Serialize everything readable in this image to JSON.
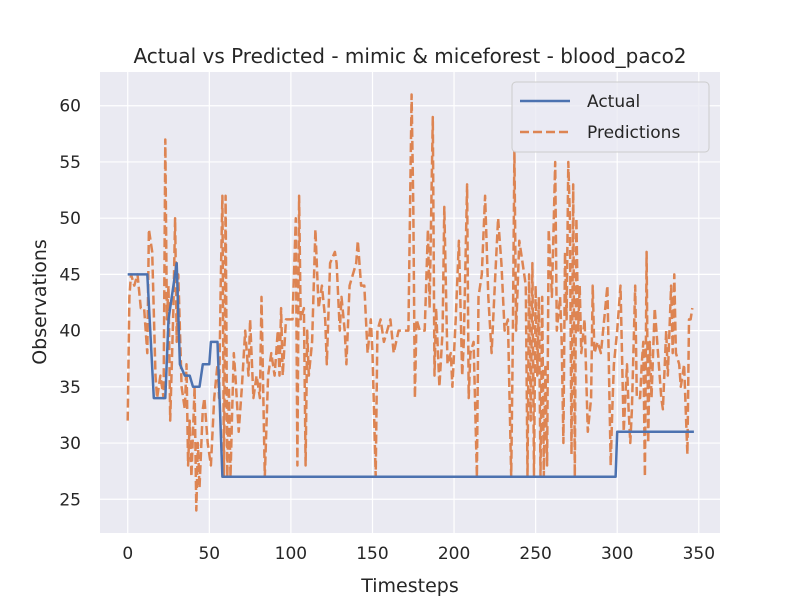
{
  "chart_data": {
    "type": "line",
    "title": "Actual vs Predicted - mimic & miceforest - blood_paco2",
    "xlabel": "Timesteps",
    "ylabel": "Observations",
    "xlim": [
      -17,
      363
    ],
    "ylim": [
      22,
      63
    ],
    "xticks": [
      0,
      50,
      100,
      150,
      200,
      250,
      300,
      350
    ],
    "yticks": [
      25,
      30,
      35,
      40,
      45,
      50,
      55,
      60
    ],
    "grid": true,
    "legend_position": "top-right",
    "series": [
      {
        "name": "Actual",
        "color": "#4c72b0",
        "style": "solid",
        "points": [
          [
            0,
            45
          ],
          [
            12,
            45
          ],
          [
            16,
            34
          ],
          [
            21,
            34
          ],
          [
            23,
            34
          ],
          [
            25,
            41
          ],
          [
            30,
            46
          ],
          [
            32,
            37
          ],
          [
            35,
            36
          ],
          [
            38,
            36
          ],
          [
            40,
            35
          ],
          [
            44,
            35
          ],
          [
            46,
            37
          ],
          [
            50,
            37
          ],
          [
            51,
            39
          ],
          [
            55,
            39
          ],
          [
            58,
            27
          ],
          [
            62,
            27
          ],
          [
            100,
            27
          ],
          [
            200,
            27
          ],
          [
            295,
            27
          ],
          [
            299,
            27
          ],
          [
            300,
            31
          ],
          [
            310,
            31
          ],
          [
            330,
            31
          ],
          [
            347,
            31
          ]
        ]
      },
      {
        "name": "Predictions",
        "color": "#dd8452",
        "style": "dashed",
        "points": [
          [
            0,
            32
          ],
          [
            1,
            43
          ],
          [
            2,
            45
          ],
          [
            4,
            44
          ],
          [
            6,
            45
          ],
          [
            8,
            42
          ],
          [
            10,
            42
          ],
          [
            12,
            38
          ],
          [
            13,
            49
          ],
          [
            15,
            47
          ],
          [
            17,
            36
          ],
          [
            18,
            34
          ],
          [
            20,
            36
          ],
          [
            22,
            34
          ],
          [
            23,
            57
          ],
          [
            24,
            41
          ],
          [
            25,
            44
          ],
          [
            26,
            32
          ],
          [
            28,
            42
          ],
          [
            29,
            50
          ],
          [
            30,
            39
          ],
          [
            31,
            45
          ],
          [
            33,
            35
          ],
          [
            35,
            33
          ],
          [
            36,
            37
          ],
          [
            37,
            28
          ],
          [
            38,
            32
          ],
          [
            39,
            27
          ],
          [
            41,
            35
          ],
          [
            42,
            24
          ],
          [
            43,
            30
          ],
          [
            44,
            26
          ],
          [
            46,
            33
          ],
          [
            47,
            34
          ],
          [
            49,
            30
          ],
          [
            51,
            28
          ],
          [
            53,
            34
          ],
          [
            55,
            37
          ],
          [
            56,
            34
          ],
          [
            57,
            44
          ],
          [
            58,
            52
          ],
          [
            59,
            27
          ],
          [
            60,
            52
          ],
          [
            61,
            27
          ],
          [
            62,
            35
          ],
          [
            63,
            27
          ],
          [
            64,
            33
          ],
          [
            65,
            38
          ],
          [
            66,
            36
          ],
          [
            68,
            31
          ],
          [
            70,
            35
          ],
          [
            72,
            40
          ],
          [
            74,
            36
          ],
          [
            75,
            41
          ],
          [
            77,
            34
          ],
          [
            79,
            36
          ],
          [
            81,
            34
          ],
          [
            82,
            43
          ],
          [
            84,
            27
          ],
          [
            86,
            36
          ],
          [
            88,
            38
          ],
          [
            90,
            36
          ],
          [
            92,
            40
          ],
          [
            93,
            36
          ],
          [
            94,
            42
          ],
          [
            95,
            36
          ],
          [
            97,
            41
          ],
          [
            99,
            41
          ],
          [
            101,
            41
          ],
          [
            103,
            50
          ],
          [
            104,
            28
          ],
          [
            105,
            52
          ],
          [
            106,
            41
          ],
          [
            108,
            42
          ],
          [
            109,
            28
          ],
          [
            110,
            40
          ],
          [
            111,
            36
          ],
          [
            113,
            39
          ],
          [
            115,
            49
          ],
          [
            117,
            42
          ],
          [
            119,
            44
          ],
          [
            121,
            41
          ],
          [
            122,
            37
          ],
          [
            124,
            46
          ],
          [
            127,
            47
          ],
          [
            128,
            46
          ],
          [
            130,
            40
          ],
          [
            131,
            43
          ],
          [
            133,
            40
          ],
          [
            134,
            37
          ],
          [
            136,
            44
          ],
          [
            138,
            45
          ],
          [
            140,
            46
          ],
          [
            141,
            48
          ],
          [
            143,
            44
          ],
          [
            145,
            44
          ],
          [
            147,
            38
          ],
          [
            149,
            41
          ],
          [
            150,
            38
          ],
          [
            152,
            27
          ],
          [
            153,
            40
          ],
          [
            155,
            41
          ],
          [
            157,
            39
          ],
          [
            159,
            40
          ],
          [
            161,
            41
          ],
          [
            163,
            38
          ],
          [
            166,
            40
          ],
          [
            168,
            40
          ],
          [
            170,
            40
          ],
          [
            172,
            40
          ],
          [
            174,
            61
          ],
          [
            175,
            51
          ],
          [
            176,
            34
          ],
          [
            177,
            41
          ],
          [
            179,
            40
          ],
          [
            181,
            40
          ],
          [
            182,
            40
          ],
          [
            184,
            49
          ],
          [
            185,
            42
          ],
          [
            187,
            59
          ],
          [
            188,
            36
          ],
          [
            189,
            42
          ],
          [
            191,
            35
          ],
          [
            193,
            40
          ],
          [
            194,
            51
          ],
          [
            196,
            37
          ],
          [
            198,
            38
          ],
          [
            199,
            35
          ],
          [
            201,
            41
          ],
          [
            203,
            48
          ],
          [
            205,
            36
          ],
          [
            206,
            39
          ],
          [
            208,
            53
          ],
          [
            209,
            34
          ],
          [
            210,
            38
          ],
          [
            212,
            39
          ],
          [
            214,
            27
          ],
          [
            215,
            43
          ],
          [
            217,
            45
          ],
          [
            219,
            52
          ],
          [
            221,
            43
          ],
          [
            223,
            38
          ],
          [
            225,
            44
          ],
          [
            227,
            50
          ],
          [
            229,
            46
          ],
          [
            231,
            40
          ],
          [
            233,
            41
          ],
          [
            235,
            27
          ],
          [
            236,
            39
          ],
          [
            237,
            56
          ],
          [
            238,
            40
          ],
          [
            240,
            48
          ],
          [
            242,
            46
          ],
          [
            244,
            44
          ],
          [
            245,
            27
          ],
          [
            246,
            45
          ],
          [
            247,
            32
          ],
          [
            248,
            46
          ],
          [
            249,
            27
          ],
          [
            250,
            44
          ],
          [
            251,
            36
          ],
          [
            252,
            43
          ],
          [
            253,
            27
          ],
          [
            254,
            43
          ],
          [
            255,
            27
          ],
          [
            256,
            37
          ],
          [
            257,
            28
          ],
          [
            258,
            49
          ],
          [
            260,
            43
          ],
          [
            262,
            55
          ],
          [
            263,
            40
          ],
          [
            265,
            43
          ],
          [
            266,
            39
          ],
          [
            267,
            30
          ],
          [
            268,
            47
          ],
          [
            269,
            41
          ],
          [
            270,
            55
          ],
          [
            271,
            50
          ],
          [
            272,
            29
          ],
          [
            273,
            53
          ],
          [
            274,
            27
          ],
          [
            275,
            50
          ],
          [
            276,
            40
          ],
          [
            277,
            44
          ],
          [
            278,
            38
          ],
          [
            280,
            41
          ],
          [
            282,
            31
          ],
          [
            284,
            34
          ],
          [
            285,
            44
          ],
          [
            286,
            38
          ],
          [
            288,
            39
          ],
          [
            290,
            38
          ],
          [
            292,
            41
          ],
          [
            294,
            44
          ],
          [
            296,
            28
          ],
          [
            297,
            33
          ],
          [
            298,
            37
          ],
          [
            300,
            40
          ],
          [
            302,
            44
          ],
          [
            304,
            31
          ],
          [
            306,
            37
          ],
          [
            307,
            33
          ],
          [
            308,
            30
          ],
          [
            309,
            33
          ],
          [
            311,
            44
          ],
          [
            312,
            34
          ],
          [
            314,
            34
          ],
          [
            315,
            37
          ],
          [
            316,
            39
          ],
          [
            317,
            27
          ],
          [
            318,
            47
          ],
          [
            319,
            30
          ],
          [
            320,
            39
          ],
          [
            321,
            34
          ],
          [
            323,
            42
          ],
          [
            324,
            40
          ],
          [
            325,
            38
          ],
          [
            327,
            34
          ],
          [
            328,
            33
          ],
          [
            330,
            40
          ],
          [
            331,
            36
          ],
          [
            333,
            44
          ],
          [
            334,
            38
          ],
          [
            335,
            45
          ],
          [
            336,
            38
          ],
          [
            338,
            37
          ],
          [
            339,
            35
          ],
          [
            340,
            36
          ],
          [
            341,
            37
          ],
          [
            342,
            33
          ],
          [
            343,
            29
          ],
          [
            344,
            41
          ],
          [
            345,
            41
          ],
          [
            346,
            42
          ]
        ]
      }
    ]
  }
}
